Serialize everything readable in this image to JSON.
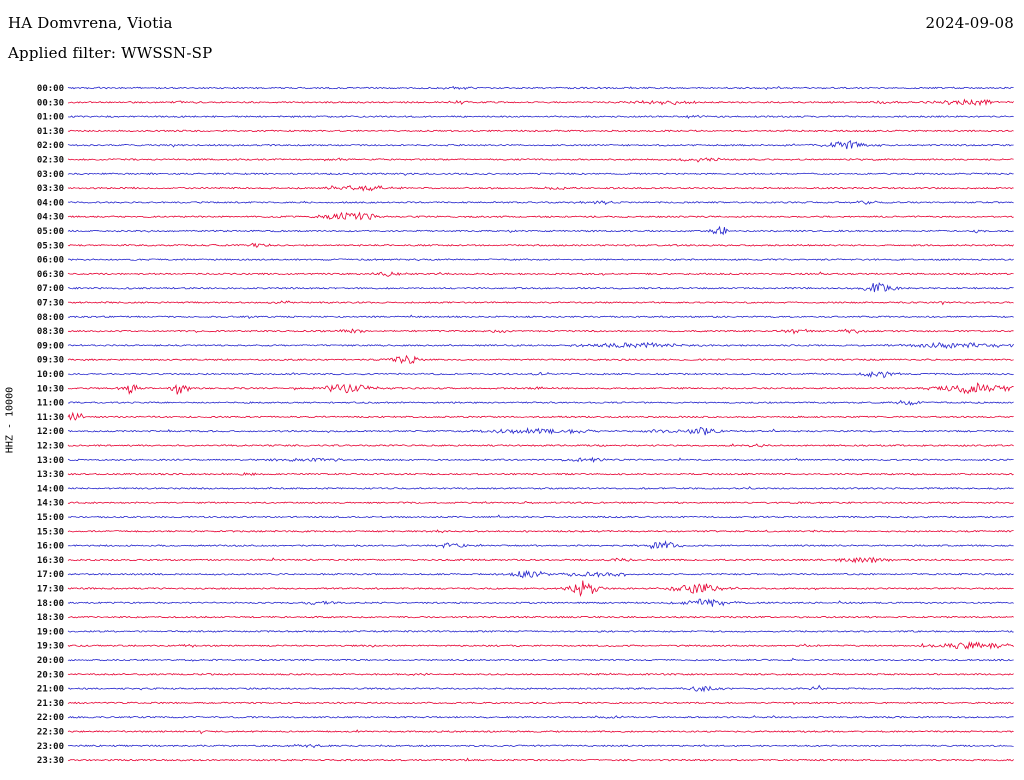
{
  "header": {
    "station": "HA Domvrena, Viotia",
    "date": "2024-09-08",
    "filter_label": "Applied filter: WWSSN-SP"
  },
  "axis": {
    "scale_label": "HHZ - 10000"
  },
  "chart_data": {
    "type": "line",
    "title": "HA Domvrena, Viotia",
    "subtitle": "Applied filter: WWSSN-SP",
    "date": "2024-09-08",
    "channel": "HHZ",
    "scale": 10000,
    "row_interval_minutes": 30,
    "start_time": "00:00",
    "end_time": "23:30",
    "legend_position": "none",
    "grid": false,
    "colors": {
      "blue": "#2424cc",
      "red": "#e60032"
    },
    "rows": [
      {
        "label": "00:00",
        "color": "blue",
        "events": [
          {
            "x": 0.41,
            "amp": 1.5,
            "w": 6
          },
          {
            "x": 0.75,
            "amp": 1.2,
            "w": 5
          }
        ]
      },
      {
        "label": "00:30",
        "color": "red",
        "events": [
          {
            "x": 0.12,
            "amp": 1.8,
            "w": 4
          },
          {
            "x": 0.41,
            "amp": 1.6,
            "w": 4
          },
          {
            "x": 0.63,
            "amp": 2,
            "w": 10
          },
          {
            "x": 0.86,
            "amp": 1.6,
            "w": 4
          },
          {
            "x": 0.95,
            "amp": 2.5,
            "w": 12
          }
        ]
      },
      {
        "label": "01:00",
        "color": "blue",
        "events": [
          {
            "x": 0.66,
            "amp": 1.2,
            "w": 5
          }
        ]
      },
      {
        "label": "01:30",
        "color": "red",
        "events": []
      },
      {
        "label": "02:00",
        "color": "blue",
        "events": [
          {
            "x": 0.824,
            "amp": 4,
            "w": 8
          }
        ]
      },
      {
        "label": "02:30",
        "color": "red",
        "events": [
          {
            "x": 0.67,
            "amp": 1.8,
            "w": 8
          },
          {
            "x": 0.28,
            "amp": 1.2,
            "w": 4
          }
        ]
      },
      {
        "label": "03:00",
        "color": "blue",
        "events": []
      },
      {
        "label": "03:30",
        "color": "red",
        "events": [
          {
            "x": 0.315,
            "amp": 2.5,
            "w": 12
          },
          {
            "x": 0.52,
            "amp": 1.5,
            "w": 5
          }
        ]
      },
      {
        "label": "04:00",
        "color": "blue",
        "events": [
          {
            "x": 0.56,
            "amp": 1.8,
            "w": 6
          },
          {
            "x": 0.84,
            "amp": 1.8,
            "w": 5
          }
        ]
      },
      {
        "label": "04:30",
        "color": "red",
        "events": [
          {
            "x": 0.3,
            "amp": 4,
            "w": 10
          }
        ]
      },
      {
        "label": "05:00",
        "color": "blue",
        "events": [
          {
            "x": 0.688,
            "amp": 5,
            "w": 3
          },
          {
            "x": 0.96,
            "amp": 1.5,
            "w": 4
          }
        ]
      },
      {
        "label": "05:30",
        "color": "red",
        "events": [
          {
            "x": 0.2,
            "amp": 2,
            "w": 4
          }
        ]
      },
      {
        "label": "06:00",
        "color": "blue",
        "events": []
      },
      {
        "label": "06:30",
        "color": "red",
        "events": [
          {
            "x": 0.34,
            "amp": 2,
            "w": 5
          }
        ]
      },
      {
        "label": "07:00",
        "color": "blue",
        "events": [
          {
            "x": 0.857,
            "amp": 5,
            "w": 6
          }
        ]
      },
      {
        "label": "07:30",
        "color": "red",
        "events": [
          {
            "x": 0.23,
            "amp": 1.2,
            "w": 4
          }
        ]
      },
      {
        "label": "08:00",
        "color": "blue",
        "events": []
      },
      {
        "label": "08:30",
        "color": "red",
        "events": [
          {
            "x": 0.3,
            "amp": 2,
            "w": 5
          },
          {
            "x": 0.46,
            "amp": 1.5,
            "w": 4
          },
          {
            "x": 0.77,
            "amp": 2,
            "w": 5
          },
          {
            "x": 0.83,
            "amp": 2,
            "w": 4
          }
        ]
      },
      {
        "label": "09:00",
        "color": "blue",
        "events": [
          {
            "x": 0.6,
            "amp": 2.5,
            "w": 18
          },
          {
            "x": 0.945,
            "amp": 2.5,
            "w": 20
          }
        ]
      },
      {
        "label": "09:30",
        "color": "red",
        "events": [
          {
            "x": 0.357,
            "amp": 4,
            "w": 5
          }
        ]
      },
      {
        "label": "10:00",
        "color": "blue",
        "events": [
          {
            "x": 0.857,
            "amp": 4,
            "w": 6
          },
          {
            "x": 0.5,
            "amp": 1.2,
            "w": 4
          }
        ]
      },
      {
        "label": "10:30",
        "color": "red",
        "events": [
          {
            "x": 0.066,
            "amp": 6,
            "w": 3
          },
          {
            "x": 0.118,
            "amp": 6,
            "w": 3
          },
          {
            "x": 0.295,
            "amp": 5,
            "w": 9
          },
          {
            "x": 0.5,
            "amp": 1.5,
            "w": 4
          },
          {
            "x": 0.957,
            "amp": 5,
            "w": 12
          }
        ]
      },
      {
        "label": "11:00",
        "color": "blue",
        "events": [
          {
            "x": 0.887,
            "amp": 2,
            "w": 4
          }
        ]
      },
      {
        "label": "11:30",
        "color": "red",
        "events": [
          {
            "x": 0.008,
            "amp": 5,
            "w": 3
          }
        ]
      },
      {
        "label": "12:00",
        "color": "blue",
        "events": [
          {
            "x": 0.5,
            "amp": 2.5,
            "w": 20
          },
          {
            "x": 0.628,
            "amp": 2,
            "w": 5
          },
          {
            "x": 0.672,
            "amp": 4,
            "w": 6
          }
        ]
      },
      {
        "label": "12:30",
        "color": "red",
        "events": [
          {
            "x": 0.726,
            "amp": 1.2,
            "w": 4
          }
        ]
      },
      {
        "label": "13:00",
        "color": "blue",
        "events": [
          {
            "x": 0.255,
            "amp": 1.8,
            "w": 12
          },
          {
            "x": 0.55,
            "amp": 2,
            "w": 8
          }
        ]
      },
      {
        "label": "13:30",
        "color": "red",
        "events": [
          {
            "x": 0.19,
            "amp": 1.2,
            "w": 4
          }
        ]
      },
      {
        "label": "14:00",
        "color": "blue",
        "events": []
      },
      {
        "label": "14:30",
        "color": "red",
        "events": [
          {
            "x": 0.49,
            "amp": 1.2,
            "w": 4
          }
        ]
      },
      {
        "label": "15:00",
        "color": "blue",
        "events": []
      },
      {
        "label": "15:30",
        "color": "red",
        "events": [
          {
            "x": 0.39,
            "amp": 1,
            "w": 4
          }
        ]
      },
      {
        "label": "16:00",
        "color": "blue",
        "events": [
          {
            "x": 0.406,
            "amp": 2.5,
            "w": 6
          },
          {
            "x": 0.626,
            "amp": 4,
            "w": 6
          }
        ]
      },
      {
        "label": "16:30",
        "color": "red",
        "events": [
          {
            "x": 0.58,
            "amp": 1.5,
            "w": 5
          },
          {
            "x": 0.84,
            "amp": 3,
            "w": 8
          }
        ]
      },
      {
        "label": "17:00",
        "color": "blue",
        "events": [
          {
            "x": 0.487,
            "amp": 4,
            "w": 6
          },
          {
            "x": 0.555,
            "amp": 3,
            "w": 10
          }
        ]
      },
      {
        "label": "17:30",
        "color": "red",
        "events": [
          {
            "x": 0.545,
            "amp": 8,
            "w": 5
          },
          {
            "x": 0.665,
            "amp": 5,
            "w": 10
          }
        ]
      },
      {
        "label": "18:00",
        "color": "blue",
        "events": [
          {
            "x": 0.262,
            "amp": 2,
            "w": 7
          },
          {
            "x": 0.675,
            "amp": 4,
            "w": 9
          }
        ]
      },
      {
        "label": "18:30",
        "color": "red",
        "events": []
      },
      {
        "label": "19:00",
        "color": "blue",
        "events": []
      },
      {
        "label": "19:30",
        "color": "red",
        "events": [
          {
            "x": 0.13,
            "amp": 1.2,
            "w": 4
          },
          {
            "x": 0.955,
            "amp": 3.5,
            "w": 14
          }
        ]
      },
      {
        "label": "20:00",
        "color": "blue",
        "events": []
      },
      {
        "label": "20:30",
        "color": "red",
        "events": [
          {
            "x": 0.37,
            "amp": 1,
            "w": 4
          }
        ]
      },
      {
        "label": "21:00",
        "color": "blue",
        "events": [
          {
            "x": 0.67,
            "amp": 3,
            "w": 6
          },
          {
            "x": 0.794,
            "amp": 3,
            "w": 3
          }
        ]
      },
      {
        "label": "21:30",
        "color": "red",
        "events": []
      },
      {
        "label": "22:00",
        "color": "blue",
        "events": [
          {
            "x": 0.58,
            "amp": 1,
            "w": 4
          }
        ]
      },
      {
        "label": "22:30",
        "color": "red",
        "events": []
      },
      {
        "label": "23:00",
        "color": "blue",
        "events": [
          {
            "x": 0.256,
            "amp": 1.5,
            "w": 6
          }
        ]
      },
      {
        "label": "23:30",
        "color": "red",
        "events": []
      }
    ]
  }
}
